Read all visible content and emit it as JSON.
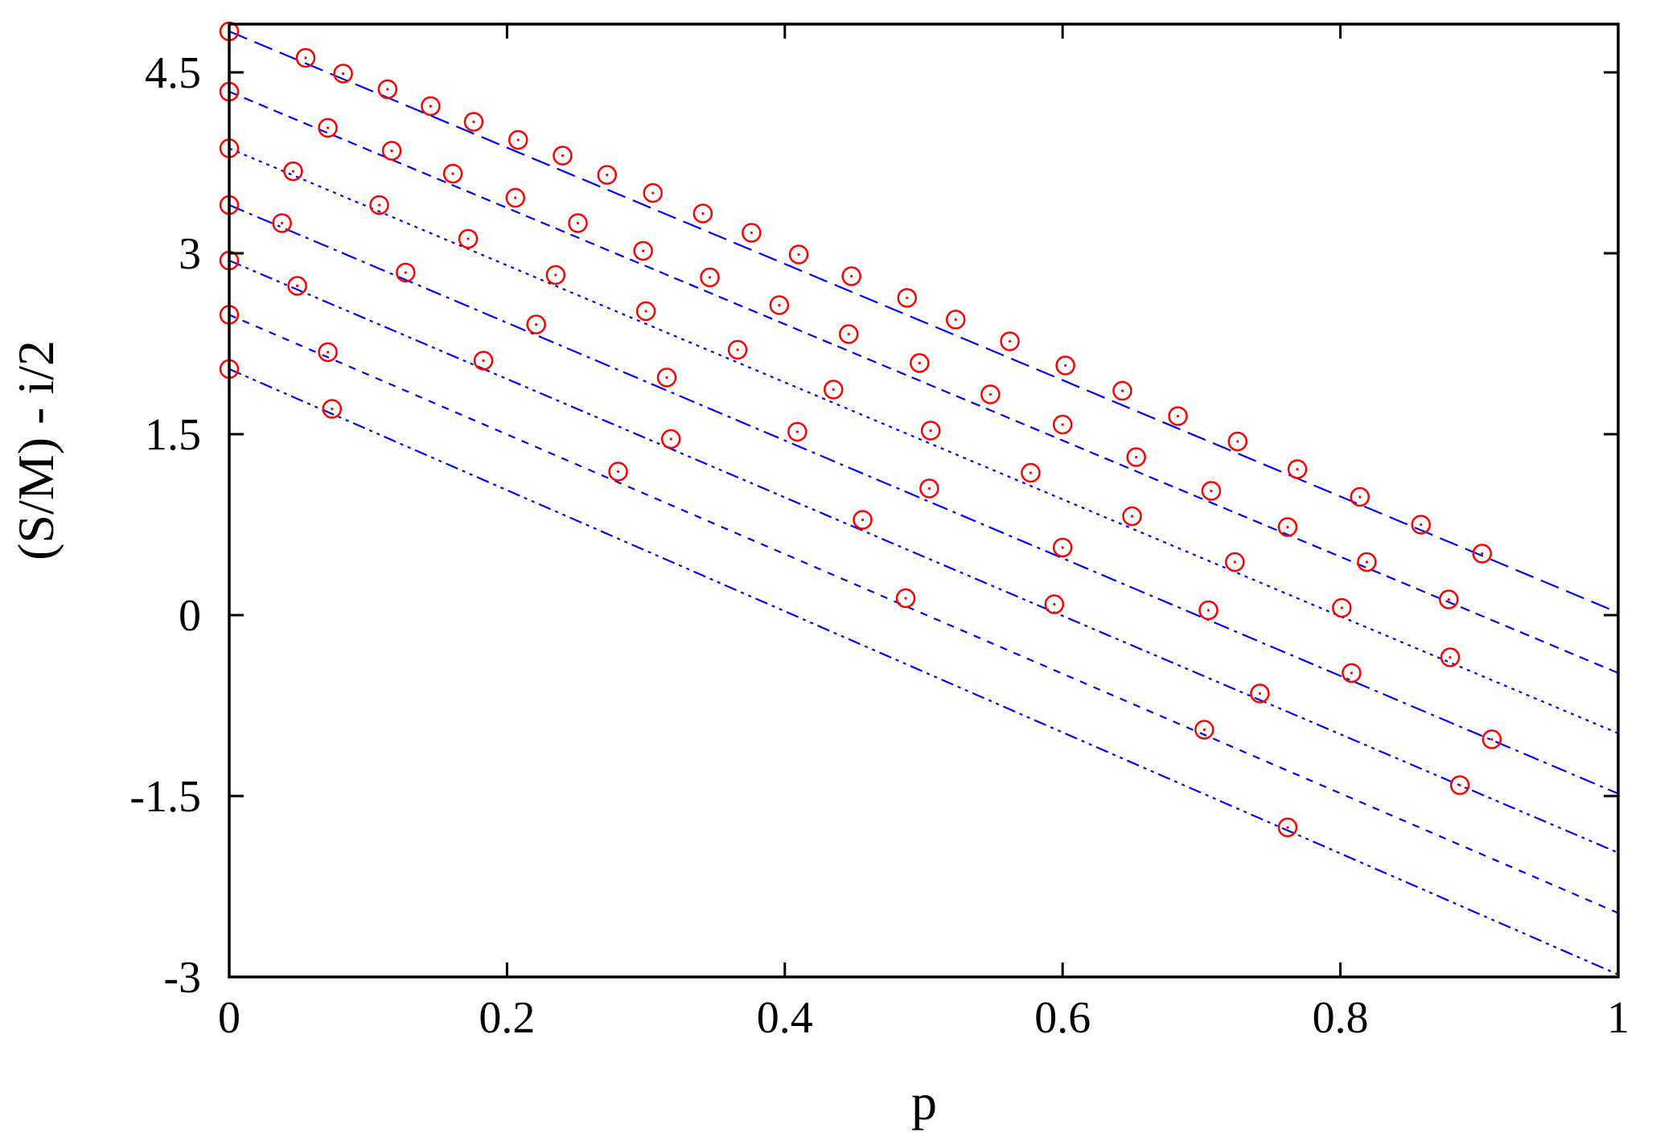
{
  "chart_data": {
    "type": "scatter",
    "title": "",
    "xlabel": "p",
    "ylabel": "(S/M) - i/2",
    "xlim": [
      0,
      1
    ],
    "ylim": [
      -3,
      4.9
    ],
    "x_ticks": [
      0,
      0.2,
      0.4,
      0.6,
      0.8,
      1
    ],
    "x_tick_labels": [
      "0",
      "0.2",
      "0.4",
      "0.6",
      "0.8",
      "1"
    ],
    "y_ticks": [
      -3,
      -1.5,
      0,
      1.5,
      3,
      4.5
    ],
    "y_tick_labels": [
      "-3",
      "-1.5",
      "0",
      "1.5",
      "3",
      "4.5"
    ],
    "grid": false,
    "legend": "none",
    "colors": {
      "points": "#ff0000",
      "lines": "#0000ff",
      "axes": "#000000"
    },
    "series": [
      {
        "line": {
          "y0": 4.84,
          "y1": 0.02,
          "dash": "long-dash"
        },
        "points": [
          [
            0,
            4.84
          ],
          [
            0.055,
            4.62
          ],
          [
            0.082,
            4.49
          ],
          [
            0.114,
            4.36
          ],
          [
            0.145,
            4.22
          ],
          [
            0.176,
            4.09
          ],
          [
            0.208,
            3.94
          ],
          [
            0.24,
            3.81
          ],
          [
            0.272,
            3.65
          ],
          [
            0.305,
            3.5
          ],
          [
            0.341,
            3.33
          ],
          [
            0.376,
            3.17
          ],
          [
            0.41,
            2.99
          ],
          [
            0.448,
            2.81
          ],
          [
            0.488,
            2.63
          ],
          [
            0.523,
            2.45
          ],
          [
            0.562,
            2.27
          ],
          [
            0.602,
            2.07
          ],
          [
            0.643,
            1.86
          ],
          [
            0.683,
            1.65
          ],
          [
            0.726,
            1.44
          ],
          [
            0.769,
            1.21
          ],
          [
            0.814,
            0.98
          ],
          [
            0.858,
            0.75
          ],
          [
            0.902,
            0.51
          ]
        ]
      },
      {
        "line": {
          "y0": 4.34,
          "y1": -0.48,
          "dash": "dash"
        },
        "points": [
          [
            0,
            4.34
          ],
          [
            0.071,
            4.04
          ],
          [
            0.117,
            3.85
          ],
          [
            0.161,
            3.66
          ],
          [
            0.206,
            3.46
          ],
          [
            0.251,
            3.25
          ],
          [
            0.298,
            3.02
          ],
          [
            0.346,
            2.8
          ],
          [
            0.396,
            2.57
          ],
          [
            0.446,
            2.33
          ],
          [
            0.497,
            2.09
          ],
          [
            0.548,
            1.83
          ],
          [
            0.6,
            1.58
          ],
          [
            0.653,
            1.31
          ],
          [
            0.707,
            1.03
          ],
          [
            0.762,
            0.73
          ],
          [
            0.819,
            0.44
          ],
          [
            0.878,
            0.13
          ]
        ]
      },
      {
        "line": {
          "y0": 3.87,
          "y1": -0.98,
          "dash": "dot"
        },
        "points": [
          [
            0,
            3.87
          ],
          [
            0.046,
            3.68
          ],
          [
            0.108,
            3.4
          ],
          [
            0.172,
            3.12
          ],
          [
            0.235,
            2.82
          ],
          [
            0.3,
            2.52
          ],
          [
            0.366,
            2.2
          ],
          [
            0.435,
            1.87
          ],
          [
            0.505,
            1.53
          ],
          [
            0.577,
            1.18
          ],
          [
            0.65,
            0.82
          ],
          [
            0.724,
            0.44
          ],
          [
            0.801,
            0.06
          ],
          [
            0.879,
            -0.35
          ]
        ]
      },
      {
        "line": {
          "y0": 3.4,
          "y1": -1.48,
          "dash": "dash-dot"
        },
        "points": [
          [
            0,
            3.4
          ],
          [
            0.038,
            3.25
          ],
          [
            0.127,
            2.84
          ],
          [
            0.221,
            2.41
          ],
          [
            0.315,
            1.97
          ],
          [
            0.409,
            1.52
          ],
          [
            0.504,
            1.05
          ],
          [
            0.6,
            0.56
          ],
          [
            0.705,
            0.04
          ],
          [
            0.808,
            -0.48
          ],
          [
            0.909,
            -1.03
          ]
        ]
      },
      {
        "line": {
          "y0": 2.94,
          "y1": -1.97,
          "dash": "dash-dot-dot"
        },
        "points": [
          [
            0,
            2.94
          ],
          [
            0.049,
            2.73
          ],
          [
            0.183,
            2.11
          ],
          [
            0.318,
            1.46
          ],
          [
            0.456,
            0.79
          ],
          [
            0.594,
            0.09
          ],
          [
            0.742,
            -0.65
          ],
          [
            0.886,
            -1.41
          ]
        ]
      },
      {
        "line": {
          "y0": 2.49,
          "y1": -2.47,
          "dash": "short-dash"
        },
        "points": [
          [
            0,
            2.49
          ],
          [
            0.071,
            2.18
          ],
          [
            0.28,
            1.19
          ],
          [
            0.487,
            0.14
          ],
          [
            0.702,
            -0.95
          ]
        ]
      },
      {
        "line": {
          "y0": 2.04,
          "y1": -2.98,
          "dash": "dash-dot-dot"
        },
        "points": [
          [
            0,
            2.04
          ],
          [
            0.074,
            1.71
          ],
          [
            0.762,
            -1.76
          ]
        ]
      }
    ]
  }
}
